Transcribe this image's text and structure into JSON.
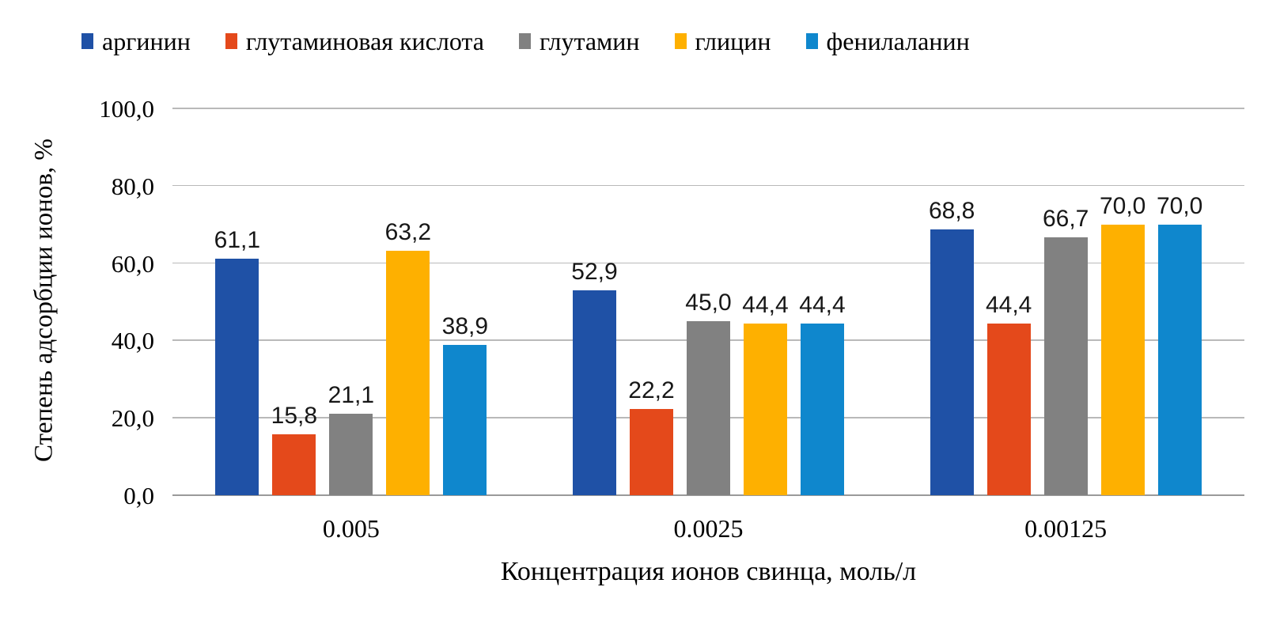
{
  "legend": [
    {
      "label": "аргинин",
      "color": "#1F51A6"
    },
    {
      "label": "глутаминовая кислота",
      "color": "#E4491B"
    },
    {
      "label": "глутамин",
      "color": "#818181"
    },
    {
      "label": "глицин",
      "color": "#FEB000"
    },
    {
      "label": "фенилаланин",
      "color": "#0F87CD"
    }
  ],
  "chart_data": {
    "type": "bar",
    "title": "",
    "xlabel": "Концентрация ионов свинца, моль/л",
    "ylabel": "Степень адсорбции ионов, %",
    "categories": [
      "0.005",
      "0.0025",
      "0.00125"
    ],
    "series": [
      {
        "name": "аргинин",
        "color": "#1F51A6",
        "values": [
          61.1,
          52.9,
          68.8
        ],
        "labels": [
          "61,1",
          "52,9",
          "68,8"
        ]
      },
      {
        "name": "глутаминовая кислота",
        "color": "#E4491B",
        "values": [
          15.8,
          22.2,
          44.4
        ],
        "labels": [
          "15,8",
          "22,2",
          "44,4"
        ]
      },
      {
        "name": "глутамин",
        "color": "#818181",
        "values": [
          21.1,
          45.0,
          66.7
        ],
        "labels": [
          "21,1",
          "45,0",
          "66,7"
        ]
      },
      {
        "name": "глицин",
        "color": "#FEB000",
        "values": [
          63.2,
          44.4,
          70.0
        ],
        "labels": [
          "63,2",
          "44,4",
          "70,0"
        ]
      },
      {
        "name": "фенилаланин",
        "color": "#0F87CD",
        "values": [
          38.9,
          44.4,
          70.0
        ],
        "labels": [
          "38,9",
          "44,4",
          "70,0"
        ]
      }
    ],
    "ylim": [
      0,
      100
    ],
    "ytick_step": 20,
    "yticks": [
      "0,0",
      "20,0",
      "40,0",
      "60,0",
      "80,0",
      "100,0"
    ],
    "grid": true,
    "legend_position": "top"
  }
}
